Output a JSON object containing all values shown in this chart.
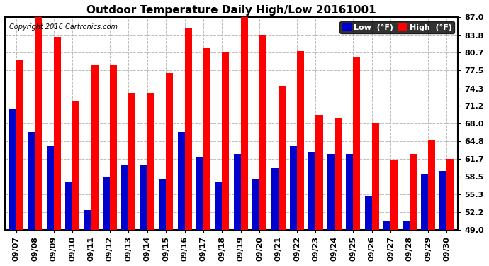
{
  "title": "Outdoor Temperature Daily High/Low 20161001",
  "copyright": "Copyright 2016 Cartronics.com",
  "legend_low": "Low  (°F)",
  "legend_high": "High  (°F)",
  "dates": [
    "09/07",
    "09/08",
    "09/09",
    "09/10",
    "09/11",
    "09/12",
    "09/13",
    "09/14",
    "09/15",
    "09/16",
    "09/17",
    "09/18",
    "09/19",
    "09/20",
    "09/21",
    "09/22",
    "09/23",
    "09/24",
    "09/25",
    "09/26",
    "09/27",
    "09/28",
    "09/29",
    "09/30"
  ],
  "highs": [
    79.5,
    87.0,
    83.5,
    72.0,
    78.5,
    78.5,
    73.5,
    73.5,
    77.0,
    85.0,
    81.5,
    80.7,
    87.0,
    83.8,
    74.8,
    81.0,
    69.5,
    69.0,
    80.0,
    68.0,
    61.5,
    62.5,
    65.0,
    61.7
  ],
  "lows": [
    70.5,
    66.5,
    64.0,
    57.5,
    52.5,
    58.5,
    60.5,
    60.5,
    58.0,
    66.5,
    62.0,
    57.5,
    62.5,
    58.0,
    60.0,
    64.0,
    63.0,
    62.5,
    62.5,
    55.0,
    50.5,
    50.5,
    59.0,
    59.5
  ],
  "ymin": 49.0,
  "ymax": 87.0,
  "yticks": [
    49.0,
    52.2,
    55.3,
    58.5,
    61.7,
    64.8,
    68.0,
    71.2,
    74.3,
    77.5,
    80.7,
    83.8,
    87.0
  ],
  "bar_width": 0.38,
  "high_color": "#ff0000",
  "low_color": "#0000cc",
  "bg_color": "#ffffff",
  "grid_color": "#bbbbbb",
  "title_fontsize": 11,
  "tick_fontsize": 8,
  "legend_fontsize": 8
}
